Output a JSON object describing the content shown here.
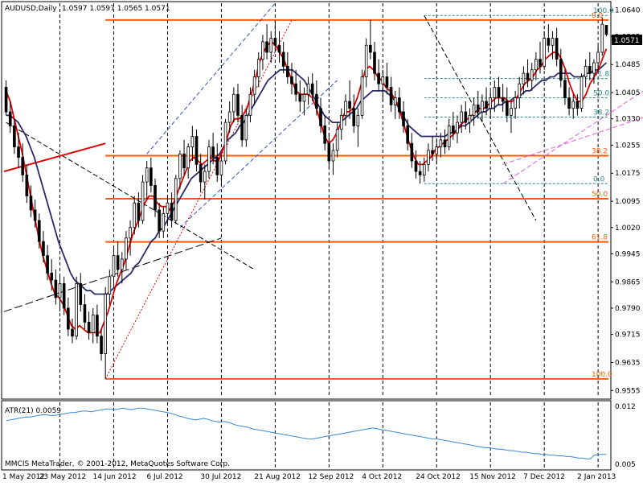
{
  "header": {
    "symbol": "AUDUSD,Daily",
    "ohlc": "1.0597 1.0597 1.0565 1.0571"
  },
  "footer": {
    "copyright": "MMCIS MetaTrader, © 2001-2012, MetaQuotes Software Corp."
  },
  "atr": {
    "label": "ATR(21) 0.0059",
    "axis_labels": [
      "0.012",
      "0.005"
    ]
  },
  "current_price": "1.0571",
  "colors": {
    "bull": "#000000",
    "bear": "#000000",
    "ma_fast": "#e00000",
    "ma_slow": "#2a2a6a",
    "fib_orange": "#ff5a0a",
    "fib_teal": "#2a8a8a",
    "channel": "#e060e0",
    "atr": "#3a8ad0"
  },
  "chart_data": {
    "type": "candlestick",
    "title": "AUDUSD,Daily",
    "y_ticks": [
      "1.0640",
      "1.0565",
      "1.0485",
      "1.0405",
      "1.0330",
      "1.0255",
      "1.0175",
      "1.0095",
      "1.0020",
      "0.9945",
      "0.9865",
      "0.9790",
      "0.9715",
      "0.9635",
      "0.9555"
    ],
    "ylim": [
      0.9535,
      1.066
    ],
    "x_ticks": [
      "1 May 2012",
      "23 May 2012",
      "14 Jun 2012",
      "6 Jul 2012",
      "30 Jul 2012",
      "21 Aug 2012",
      "12 Sep 2012",
      "4 Oct 2012",
      "24 Oct 2012",
      "15 Nov 2012",
      "7 Dec 2012",
      "2 Jan 2013"
    ],
    "fib_outer": [
      {
        "label": "0.0",
        "price": 1.0612
      },
      {
        "label": "38.2",
        "price": 1.0225
      },
      {
        "label": "50.0",
        "price": 1.0102
      },
      {
        "label": "61.8",
        "price": 0.9979
      },
      {
        "label": "100.0",
        "price": 0.9588
      }
    ],
    "fib_inner": [
      {
        "label": "100.0",
        "price": 1.0625
      },
      {
        "label": "61.8",
        "price": 1.0445
      },
      {
        "label": "50.0",
        "price": 1.039
      },
      {
        "label": "38.2",
        "price": 1.0335
      },
      {
        "label": "0.0",
        "price": 1.0145
      }
    ],
    "candles": [
      [
        1.042,
        1.044,
        1.034,
        1.035
      ],
      [
        1.035,
        1.038,
        1.029,
        1.031
      ],
      [
        1.031,
        1.033,
        1.023,
        1.025
      ],
      [
        1.025,
        1.029,
        1.019,
        1.022
      ],
      [
        1.022,
        1.026,
        1.015,
        1.017
      ],
      [
        1.017,
        1.02,
        1.009,
        1.011
      ],
      [
        1.011,
        1.014,
        1.005,
        1.007
      ],
      [
        1.007,
        1.01,
        1.002,
        1.004
      ],
      [
        1.004,
        1.006,
        0.996,
        0.998
      ],
      [
        0.998,
        1.001,
        0.992,
        0.994
      ],
      [
        0.994,
        0.997,
        0.987,
        0.989
      ],
      [
        0.989,
        0.993,
        0.984,
        0.987
      ],
      [
        0.987,
        0.99,
        0.98,
        0.982
      ],
      [
        0.982,
        0.988,
        0.978,
        0.986
      ],
      [
        0.986,
        0.988,
        0.977,
        0.979
      ],
      [
        0.979,
        0.982,
        0.971,
        0.973
      ],
      [
        0.973,
        0.976,
        0.969,
        0.971
      ],
      [
        0.971,
        0.988,
        0.97,
        0.986
      ],
      [
        0.986,
        0.989,
        0.978,
        0.98
      ],
      [
        0.98,
        0.983,
        0.973,
        0.975
      ],
      [
        0.975,
        0.978,
        0.97,
        0.972
      ],
      [
        0.972,
        0.979,
        0.969,
        0.977
      ],
      [
        0.977,
        0.98,
        0.969,
        0.971
      ],
      [
        0.971,
        0.973,
        0.964,
        0.966
      ],
      [
        0.966,
        0.985,
        0.9588,
        0.983
      ],
      [
        0.983,
        0.99,
        0.98,
        0.988
      ],
      [
        0.988,
        0.996,
        0.985,
        0.994
      ],
      [
        0.994,
        0.998,
        0.988,
        0.99
      ],
      [
        0.99,
        0.995,
        0.986,
        0.993
      ],
      [
        0.993,
        1.001,
        0.99,
        0.999
      ],
      [
        0.999,
        1.004,
        0.994,
        1.002
      ],
      [
        1.002,
        1.011,
        1.0,
        1.009
      ],
      [
        1.009,
        1.012,
        1.002,
        1.004
      ],
      [
        1.004,
        1.017,
        1.003,
        1.015
      ],
      [
        1.015,
        1.021,
        1.01,
        1.019
      ],
      [
        1.019,
        1.022,
        1.012,
        1.014
      ],
      [
        1.014,
        1.016,
        1.005,
        1.007
      ],
      [
        1.007,
        1.009,
        0.999,
        1.001
      ],
      [
        1.001,
        1.008,
        0.999,
        1.006
      ],
      [
        1.006,
        1.011,
        1.003,
        1.009
      ],
      [
        1.009,
        1.012,
        1.002,
        1.004
      ],
      [
        1.004,
        1.017,
        1.003,
        1.016
      ],
      [
        1.016,
        1.024,
        1.013,
        1.023
      ],
      [
        1.023,
        1.027,
        1.017,
        1.019
      ],
      [
        1.019,
        1.026,
        1.016,
        1.025
      ],
      [
        1.025,
        1.031,
        1.021,
        1.028
      ],
      [
        1.028,
        1.03,
        1.018,
        1.02
      ],
      [
        1.02,
        1.023,
        1.012,
        1.015
      ],
      [
        1.015,
        1.02,
        1.01,
        1.018
      ],
      [
        1.018,
        1.027,
        1.016,
        1.025
      ],
      [
        1.025,
        1.029,
        1.02,
        1.022
      ],
      [
        1.022,
        1.026,
        1.015,
        1.017
      ],
      [
        1.017,
        1.023,
        1.014,
        1.021
      ],
      [
        1.021,
        1.033,
        1.02,
        1.032
      ],
      [
        1.032,
        1.038,
        1.029,
        1.035
      ],
      [
        1.035,
        1.042,
        1.032,
        1.04
      ],
      [
        1.04,
        1.043,
        1.032,
        1.034
      ],
      [
        1.034,
        1.037,
        1.025,
        1.027
      ],
      [
        1.027,
        1.036,
        1.025,
        1.034
      ],
      [
        1.034,
        1.042,
        1.032,
        1.04
      ],
      [
        1.04,
        1.047,
        1.037,
        1.045
      ],
      [
        1.045,
        1.052,
        1.042,
        1.05
      ],
      [
        1.05,
        1.057,
        1.047,
        1.055
      ],
      [
        1.055,
        1.06,
        1.05,
        1.052
      ],
      [
        1.052,
        1.058,
        1.049,
        1.056
      ],
      [
        1.056,
        1.061,
        1.052,
        1.054
      ],
      [
        1.054,
        1.058,
        1.049,
        1.052
      ],
      [
        1.052,
        1.055,
        1.046,
        1.048
      ],
      [
        1.048,
        1.052,
        1.043,
        1.045
      ],
      [
        1.045,
        1.049,
        1.04,
        1.043
      ],
      [
        1.043,
        1.047,
        1.038,
        1.04
      ],
      [
        1.04,
        1.044,
        1.035,
        1.038
      ],
      [
        1.038,
        1.042,
        1.034,
        1.04
      ],
      [
        1.04,
        1.045,
        1.037,
        1.043
      ],
      [
        1.043,
        1.046,
        1.038,
        1.04
      ],
      [
        1.04,
        1.044,
        1.034,
        1.036
      ],
      [
        1.036,
        1.039,
        1.029,
        1.031
      ],
      [
        1.031,
        1.034,
        1.024,
        1.026
      ],
      [
        1.026,
        1.029,
        1.019,
        1.021
      ],
      [
        1.021,
        1.026,
        1.017,
        1.024
      ],
      [
        1.024,
        1.032,
        1.022,
        1.03
      ],
      [
        1.03,
        1.036,
        1.027,
        1.034
      ],
      [
        1.034,
        1.04,
        1.031,
        1.038
      ],
      [
        1.038,
        1.044,
        1.033,
        1.036
      ],
      [
        1.036,
        1.04,
        1.029,
        1.031
      ],
      [
        1.031,
        1.036,
        1.025,
        1.034
      ],
      [
        1.034,
        1.047,
        1.033,
        1.045
      ],
      [
        1.045,
        1.056,
        1.042,
        1.054
      ],
      [
        1.054,
        1.0612,
        1.05,
        1.052
      ],
      [
        1.052,
        1.055,
        1.044,
        1.046
      ],
      [
        1.046,
        1.05,
        1.041,
        1.043
      ],
      [
        1.043,
        1.047,
        1.038,
        1.045
      ],
      [
        1.045,
        1.049,
        1.04,
        1.042
      ],
      [
        1.042,
        1.045,
        1.035,
        1.037
      ],
      [
        1.037,
        1.041,
        1.033,
        1.039
      ],
      [
        1.039,
        1.042,
        1.033,
        1.035
      ],
      [
        1.035,
        1.038,
        1.029,
        1.031
      ],
      [
        1.031,
        1.033,
        1.024,
        1.026
      ],
      [
        1.026,
        1.029,
        1.019,
        1.021
      ],
      [
        1.021,
        1.024,
        1.016,
        1.018
      ],
      [
        1.018,
        1.021,
        1.0145,
        1.017
      ],
      [
        1.017,
        1.022,
        1.015,
        1.02
      ],
      [
        1.02,
        1.026,
        1.018,
        1.024
      ],
      [
        1.024,
        1.028,
        1.021,
        1.023
      ],
      [
        1.023,
        1.027,
        1.02,
        1.025
      ],
      [
        1.025,
        1.029,
        1.022,
        1.027
      ],
      [
        1.027,
        1.03,
        1.023,
        1.025
      ],
      [
        1.025,
        1.033,
        1.024,
        1.031
      ],
      [
        1.031,
        1.035,
        1.027,
        1.029
      ],
      [
        1.029,
        1.034,
        1.026,
        1.032
      ],
      [
        1.032,
        1.037,
        1.029,
        1.035
      ],
      [
        1.035,
        1.038,
        1.03,
        1.032
      ],
      [
        1.032,
        1.036,
        1.029,
        1.034
      ],
      [
        1.034,
        1.039,
        1.031,
        1.037
      ],
      [
        1.037,
        1.041,
        1.033,
        1.035
      ],
      [
        1.035,
        1.04,
        1.032,
        1.038
      ],
      [
        1.038,
        1.042,
        1.034,
        1.036
      ],
      [
        1.036,
        1.041,
        1.033,
        1.039
      ],
      [
        1.039,
        1.044,
        1.035,
        1.042
      ],
      [
        1.042,
        1.045,
        1.037,
        1.039
      ],
      [
        1.039,
        1.043,
        1.035,
        1.038
      ],
      [
        1.038,
        1.042,
        1.032,
        1.034
      ],
      [
        1.034,
        1.038,
        1.029,
        1.036
      ],
      [
        1.036,
        1.041,
        1.033,
        1.039
      ],
      [
        1.039,
        1.045,
        1.036,
        1.043
      ],
      [
        1.043,
        1.048,
        1.04,
        1.046
      ],
      [
        1.046,
        1.05,
        1.042,
        1.044
      ],
      [
        1.044,
        1.049,
        1.041,
        1.047
      ],
      [
        1.047,
        1.052,
        1.044,
        1.05
      ],
      [
        1.05,
        1.055,
        1.046,
        1.048
      ],
      [
        1.048,
        1.058,
        1.047,
        1.056
      ],
      [
        1.056,
        1.06,
        1.052,
        1.054
      ],
      [
        1.054,
        1.058,
        1.05,
        1.056
      ],
      [
        1.056,
        1.059,
        1.048,
        1.05
      ],
      [
        1.05,
        1.053,
        1.042,
        1.044
      ],
      [
        1.044,
        1.047,
        1.037,
        1.039
      ],
      [
        1.039,
        1.042,
        1.034,
        1.036
      ],
      [
        1.036,
        1.04,
        1.033,
        1.038
      ],
      [
        1.038,
        1.04,
        1.034,
        1.036
      ],
      [
        1.036,
        1.046,
        1.035,
        1.045
      ],
      [
        1.045,
        1.05,
        1.042,
        1.048
      ],
      [
        1.048,
        1.052,
        1.044,
        1.046
      ],
      [
        1.046,
        1.05,
        1.043,
        1.049
      ],
      [
        1.049,
        1.054,
        1.046,
        1.052
      ],
      [
        1.052,
        1.062,
        1.051,
        1.06
      ],
      [
        1.0597,
        1.0597,
        1.0565,
        1.0571
      ]
    ],
    "ma_fast": [
      1.041,
      1.038,
      1.033,
      1.028,
      1.023,
      1.017,
      1.011,
      1.005,
      0.999,
      0.994,
      0.99,
      0.986,
      0.983,
      0.982,
      0.98,
      0.977,
      0.974,
      0.973,
      0.974,
      0.973,
      0.972,
      0.972,
      0.972,
      0.972,
      0.975,
      0.978,
      0.982,
      0.986,
      0.989,
      0.992,
      0.996,
      1.0,
      1.003,
      1.006,
      1.009,
      1.011,
      1.011,
      1.009,
      1.008,
      1.008,
      1.007,
      1.009,
      1.012,
      1.015,
      1.018,
      1.021,
      1.022,
      1.021,
      1.02,
      1.021,
      1.022,
      1.021,
      1.021,
      1.024,
      1.027,
      1.031,
      1.033,
      1.033,
      1.034,
      1.036,
      1.04,
      1.044,
      1.049,
      1.052,
      1.054,
      1.055,
      1.054,
      1.052,
      1.05,
      1.047,
      1.044,
      1.041,
      1.04,
      1.04,
      1.04,
      1.039,
      1.036,
      1.032,
      1.028,
      1.026,
      1.027,
      1.029,
      1.032,
      1.035,
      1.035,
      1.036,
      1.039,
      1.043,
      1.047,
      1.048,
      1.047,
      1.045,
      1.044,
      1.042,
      1.041,
      1.039,
      1.037,
      1.033,
      1.029,
      1.025,
      1.022,
      1.02,
      1.02,
      1.021,
      1.022,
      1.024,
      1.025,
      1.026,
      1.027,
      1.028,
      1.029,
      1.031,
      1.032,
      1.033,
      1.034,
      1.035,
      1.036,
      1.036,
      1.037,
      1.038,
      1.039,
      1.039,
      1.039,
      1.038,
      1.038,
      1.039,
      1.041,
      1.043,
      1.044,
      1.045,
      1.047,
      1.048,
      1.05,
      1.051,
      1.052,
      1.052,
      1.05,
      1.047,
      1.043,
      1.04,
      1.038,
      1.038,
      1.04,
      1.043,
      1.045,
      1.047,
      1.05,
      1.053
    ],
    "ma_slow": [
      1.034,
      1.034,
      1.033,
      1.032,
      1.03,
      1.028,
      1.025,
      1.022,
      1.018,
      1.014,
      1.01,
      1.006,
      1.002,
      0.998,
      0.995,
      0.992,
      0.989,
      0.987,
      0.986,
      0.985,
      0.984,
      0.984,
      0.983,
      0.983,
      0.983,
      0.983,
      0.984,
      0.985,
      0.986,
      0.987,
      0.988,
      0.989,
      0.991,
      0.992,
      0.994,
      0.996,
      0.998,
      0.999,
      1.001,
      1.002,
      1.004,
      1.006,
      1.008,
      1.01,
      1.012,
      1.014,
      1.016,
      1.017,
      1.018,
      1.019,
      1.02,
      1.021,
      1.022,
      1.023,
      1.025,
      1.027,
      1.028,
      1.029,
      1.031,
      1.032,
      1.034,
      1.036,
      1.038,
      1.04,
      1.042,
      1.044,
      1.045,
      1.046,
      1.047,
      1.047,
      1.047,
      1.047,
      1.046,
      1.045,
      1.044,
      1.042,
      1.04,
      1.038,
      1.036,
      1.034,
      1.033,
      1.032,
      1.032,
      1.032,
      1.033,
      1.034,
      1.035,
      1.036,
      1.038,
      1.039,
      1.04,
      1.041,
      1.041,
      1.041,
      1.041,
      1.04,
      1.039,
      1.037,
      1.035,
      1.033,
      1.031,
      1.03,
      1.029,
      1.028,
      1.028,
      1.028,
      1.028,
      1.028,
      1.028,
      1.028,
      1.029,
      1.029,
      1.03,
      1.031,
      1.031,
      1.032,
      1.033,
      1.034,
      1.035,
      1.035,
      1.036,
      1.036,
      1.037,
      1.037,
      1.038,
      1.038,
      1.039,
      1.039,
      1.04,
      1.041,
      1.041,
      1.042,
      1.043,
      1.044,
      1.044,
      1.045,
      1.045,
      1.046,
      1.046,
      1.046,
      1.046,
      1.045,
      1.045,
      1.045,
      1.046,
      1.046,
      1.047,
      1.047,
      1.048,
      1.049
    ],
    "atr_values": [
      0.0105,
      0.0106,
      0.0107,
      0.0108,
      0.0109,
      0.011,
      0.011,
      0.0111,
      0.0112,
      0.0113,
      0.0113,
      0.0112,
      0.0112,
      0.0113,
      0.0114,
      0.0115,
      0.0116,
      0.0116,
      0.0117,
      0.0118,
      0.0118,
      0.0117,
      0.0118,
      0.0119,
      0.012,
      0.0121,
      0.0121,
      0.012,
      0.0121,
      0.0122,
      0.0121,
      0.012,
      0.0121,
      0.0122,
      0.0122,
      0.0121,
      0.012,
      0.0119,
      0.0118,
      0.0117,
      0.0116,
      0.0115,
      0.0113,
      0.0111,
      0.011,
      0.0108,
      0.0107,
      0.0106,
      0.0107,
      0.0108,
      0.0107,
      0.0105,
      0.0104,
      0.0103,
      0.0104,
      0.0103,
      0.0101,
      0.0099,
      0.0098,
      0.0097,
      0.0096,
      0.0094,
      0.0093,
      0.0092,
      0.0091,
      0.009,
      0.0089,
      0.0088,
      0.0087,
      0.0086,
      0.0085,
      0.0084,
      0.0083,
      0.0082,
      0.0081,
      0.008,
      0.008,
      0.0081,
      0.0082,
      0.0083,
      0.0084,
      0.0085,
      0.0086,
      0.0087,
      0.0088,
      0.0089,
      0.009,
      0.0091,
      0.0092,
      0.0093,
      0.0094,
      0.0095,
      0.0094,
      0.0093,
      0.0092,
      0.0091,
      0.009,
      0.0089,
      0.0088,
      0.0087,
      0.0086,
      0.0085,
      0.0084,
      0.0083,
      0.0082,
      0.0081,
      0.008,
      0.008,
      0.0079,
      0.0078,
      0.0077,
      0.0076,
      0.0075,
      0.0074,
      0.0073,
      0.0072,
      0.0071,
      0.007,
      0.0069,
      0.0068,
      0.0068,
      0.0067,
      0.0066,
      0.0066,
      0.0065,
      0.0064,
      0.0064,
      0.0063,
      0.0062,
      0.0062,
      0.0061,
      0.006,
      0.006,
      0.0059,
      0.0059,
      0.0058,
      0.0058,
      0.0057,
      0.0057,
      0.0056,
      0.0056,
      0.0055,
      0.0054,
      0.0054,
      0.0053,
      0.0053,
      0.0058,
      0.0059,
      0.0059,
      0.0059
    ]
  }
}
